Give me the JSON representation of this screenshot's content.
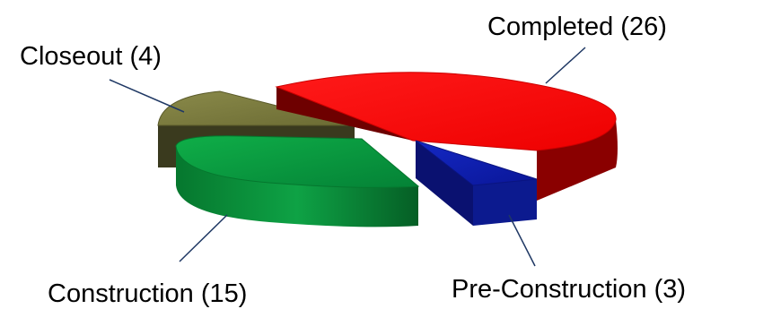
{
  "chart_data": {
    "type": "pie",
    "style": "3d-exploded",
    "title": "",
    "categories": [
      "Completed",
      "Pre-Construction",
      "Construction",
      "Closeout"
    ],
    "values": [
      26,
      3,
      15,
      4
    ],
    "labels": [
      "Completed (26)",
      "Pre-Construction (3)",
      "Construction (15)",
      "Closeout (4)"
    ],
    "colors": {
      "Completed": "#ff0000",
      "Pre-Construction": "#0a1aa8",
      "Construction": "#079a3c",
      "Closeout": "#7a7a3e"
    },
    "legend": "none"
  }
}
